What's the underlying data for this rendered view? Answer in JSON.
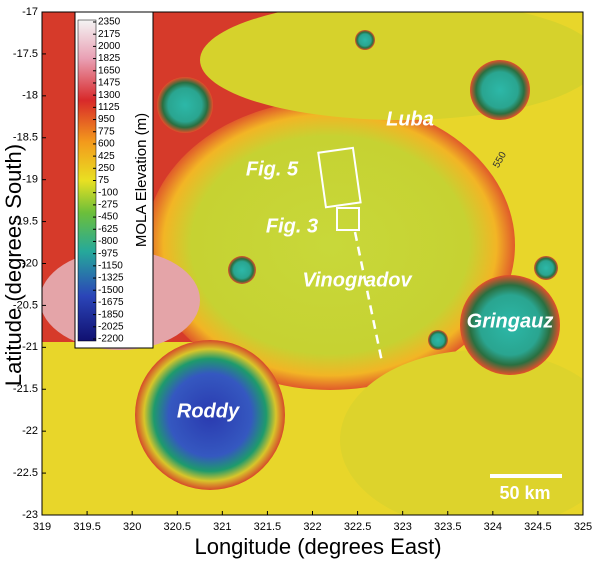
{
  "map": {
    "xlabel": "Longitude (degrees East)",
    "ylabel": "Latitude (degrees South)",
    "xlim": [
      319,
      325
    ],
    "ylim": [
      -23,
      -17
    ],
    "xticks": [
      319,
      319.5,
      320,
      320.5,
      321,
      321.5,
      322,
      322.5,
      323,
      323.5,
      324,
      324.5,
      325
    ],
    "yticks": [
      -17,
      -17.5,
      -18,
      -18.5,
      -19,
      -19.5,
      -20,
      -20.5,
      -21,
      -21.5,
      -22,
      -22.5,
      -23
    ],
    "colorbar": {
      "label": "MOLA Elevation (m)",
      "ticks": [
        2350,
        2175,
        2000,
        1825,
        1650,
        1475,
        1300,
        1125,
        950,
        775,
        600,
        425,
        250,
        75,
        -100,
        -275,
        -450,
        -625,
        -800,
        -975,
        -1150,
        -1325,
        -1500,
        -1675,
        -1850,
        -2025,
        -2200
      ]
    },
    "labels": {
      "luba": "Luba",
      "fig5": "Fig. 5",
      "fig3": "Fig. 3",
      "vinogradov": "Vinogradov",
      "gringauz": "Gringauz",
      "roddy": "Roddy"
    },
    "contour_label": "550",
    "scale_bar": "50 km"
  }
}
